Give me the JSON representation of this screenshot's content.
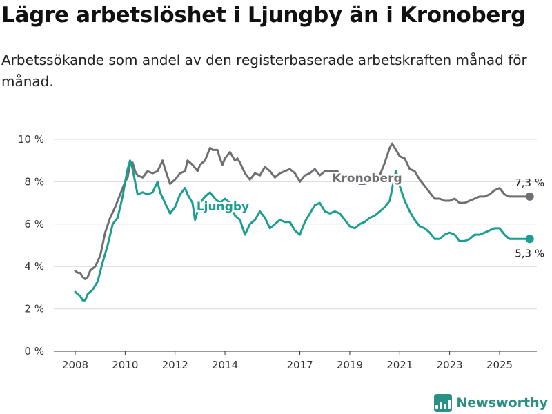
{
  "title": "Lägre arbetslöshet i Ljungby än i Kronoberg",
  "subtitle": "Arbetssökande som andel av den registerbaserade arbetskraften månad för månad.",
  "brand": "Newsworthy",
  "colors": {
    "ljungby": "#1a9e8f",
    "kronoberg": "#6e6e73",
    "grid": "#d9d9d9",
    "brand": "#2a8f84"
  },
  "chart_data": {
    "type": "line",
    "x_unit": "year",
    "ylim": [
      0,
      10
    ],
    "y_ticks": [
      {
        "value": 0,
        "label": "0 %"
      },
      {
        "value": 2,
        "label": "2 %"
      },
      {
        "value": 4,
        "label": "4 %"
      },
      {
        "value": 6,
        "label": "6 %"
      },
      {
        "value": 8,
        "label": "8 %"
      },
      {
        "value": 10,
        "label": "10 %"
      }
    ],
    "x_ticks": [
      {
        "value": 2008,
        "label": "2008"
      },
      {
        "value": 2010,
        "label": "2010"
      },
      {
        "value": 2012,
        "label": "2012"
      },
      {
        "value": 2014,
        "label": "2014"
      },
      {
        "value": 2017,
        "label": "2017"
      },
      {
        "value": 2019,
        "label": "2019"
      },
      {
        "value": 2021,
        "label": "2021"
      },
      {
        "value": 2023,
        "label": "2023"
      },
      {
        "value": 2025,
        "label": "2025"
      }
    ],
    "grid": true,
    "series": [
      {
        "name": "Kronoberg",
        "end_label": "7,3 %",
        "points": [
          [
            2008.0,
            3.8
          ],
          [
            2008.1,
            3.7
          ],
          [
            2008.2,
            3.7
          ],
          [
            2008.3,
            3.5
          ],
          [
            2008.4,
            3.4
          ],
          [
            2008.5,
            3.5
          ],
          [
            2008.6,
            3.8
          ],
          [
            2008.8,
            4.0
          ],
          [
            2009.0,
            4.5
          ],
          [
            2009.2,
            5.6
          ],
          [
            2009.4,
            6.3
          ],
          [
            2009.6,
            6.8
          ],
          [
            2009.8,
            7.4
          ],
          [
            2010.0,
            8.0
          ],
          [
            2010.1,
            8.2
          ],
          [
            2010.2,
            8.9
          ],
          [
            2010.3,
            8.9
          ],
          [
            2010.4,
            8.5
          ],
          [
            2010.5,
            8.3
          ],
          [
            2010.7,
            8.2
          ],
          [
            2010.9,
            8.5
          ],
          [
            2011.1,
            8.4
          ],
          [
            2011.3,
            8.5
          ],
          [
            2011.5,
            9.0
          ],
          [
            2011.6,
            8.6
          ],
          [
            2011.8,
            7.9
          ],
          [
            2012.0,
            8.1
          ],
          [
            2012.2,
            8.4
          ],
          [
            2012.4,
            8.5
          ],
          [
            2012.5,
            9.0
          ],
          [
            2012.7,
            8.8
          ],
          [
            2012.9,
            8.5
          ],
          [
            2013.0,
            8.8
          ],
          [
            2013.2,
            9.0
          ],
          [
            2013.4,
            9.6
          ],
          [
            2013.5,
            9.5
          ],
          [
            2013.7,
            9.5
          ],
          [
            2013.8,
            9.1
          ],
          [
            2013.9,
            8.8
          ],
          [
            2014.0,
            9.1
          ],
          [
            2014.2,
            9.4
          ],
          [
            2014.4,
            9.0
          ],
          [
            2014.5,
            9.1
          ],
          [
            2014.6,
            8.9
          ],
          [
            2014.8,
            8.4
          ],
          [
            2015.0,
            8.1
          ],
          [
            2015.2,
            8.4
          ],
          [
            2015.4,
            8.3
          ],
          [
            2015.6,
            8.7
          ],
          [
            2015.8,
            8.5
          ],
          [
            2016.0,
            8.2
          ],
          [
            2016.2,
            8.4
          ],
          [
            2016.4,
            8.5
          ],
          [
            2016.6,
            8.6
          ],
          [
            2016.8,
            8.4
          ],
          [
            2017.0,
            8.0
          ],
          [
            2017.2,
            8.3
          ],
          [
            2017.4,
            8.4
          ],
          [
            2017.6,
            8.6
          ],
          [
            2017.8,
            8.3
          ],
          [
            2018.0,
            8.5
          ],
          [
            2018.2,
            8.5
          ],
          [
            2018.5,
            8.5
          ],
          [
            2018.8,
            8.1
          ],
          [
            2019.0,
            8.0
          ],
          [
            2019.2,
            8.0
          ],
          [
            2019.4,
            7.9
          ],
          [
            2019.6,
            7.9
          ],
          [
            2019.8,
            8.0
          ],
          [
            2020.0,
            8.0
          ],
          [
            2020.2,
            8.3
          ],
          [
            2020.4,
            8.9
          ],
          [
            2020.6,
            9.6
          ],
          [
            2020.7,
            9.8
          ],
          [
            2020.85,
            9.5
          ],
          [
            2021.0,
            9.2
          ],
          [
            2021.2,
            9.1
          ],
          [
            2021.4,
            8.6
          ],
          [
            2021.6,
            8.5
          ],
          [
            2021.8,
            8.1
          ],
          [
            2022.0,
            7.8
          ],
          [
            2022.2,
            7.5
          ],
          [
            2022.4,
            7.2
          ],
          [
            2022.6,
            7.2
          ],
          [
            2022.8,
            7.1
          ],
          [
            2023.0,
            7.1
          ],
          [
            2023.2,
            7.2
          ],
          [
            2023.4,
            7.0
          ],
          [
            2023.6,
            7.0
          ],
          [
            2023.8,
            7.1
          ],
          [
            2024.0,
            7.2
          ],
          [
            2024.2,
            7.3
          ],
          [
            2024.4,
            7.3
          ],
          [
            2024.6,
            7.4
          ],
          [
            2024.8,
            7.6
          ],
          [
            2025.0,
            7.7
          ],
          [
            2025.2,
            7.4
          ],
          [
            2025.4,
            7.3
          ],
          [
            2025.6,
            7.3
          ]
        ]
      },
      {
        "name": "Ljungby",
        "end_label": "5,3 %",
        "points": [
          [
            2008.0,
            2.8
          ],
          [
            2008.1,
            2.7
          ],
          [
            2008.2,
            2.6
          ],
          [
            2008.3,
            2.4
          ],
          [
            2008.4,
            2.4
          ],
          [
            2008.5,
            2.7
          ],
          [
            2008.7,
            2.9
          ],
          [
            2008.9,
            3.3
          ],
          [
            2009.1,
            4.2
          ],
          [
            2009.3,
            5.0
          ],
          [
            2009.5,
            6.0
          ],
          [
            2009.7,
            6.3
          ],
          [
            2009.9,
            7.3
          ],
          [
            2010.0,
            8.0
          ],
          [
            2010.1,
            8.6
          ],
          [
            2010.2,
            9.0
          ],
          [
            2010.3,
            8.6
          ],
          [
            2010.4,
            8.0
          ],
          [
            2010.5,
            7.4
          ],
          [
            2010.7,
            7.5
          ],
          [
            2010.9,
            7.4
          ],
          [
            2011.1,
            7.5
          ],
          [
            2011.3,
            8.0
          ],
          [
            2011.4,
            7.5
          ],
          [
            2011.6,
            7.0
          ],
          [
            2011.8,
            6.5
          ],
          [
            2012.0,
            6.8
          ],
          [
            2012.2,
            7.4
          ],
          [
            2012.4,
            7.7
          ],
          [
            2012.5,
            7.4
          ],
          [
            2012.7,
            7.0
          ],
          [
            2012.8,
            6.2
          ],
          [
            2012.9,
            6.6
          ],
          [
            2013.0,
            7.0
          ],
          [
            2013.2,
            7.3
          ],
          [
            2013.4,
            7.5
          ],
          [
            2013.6,
            7.2
          ],
          [
            2013.8,
            7.0
          ],
          [
            2014.0,
            7.2
          ],
          [
            2014.2,
            7.0
          ],
          [
            2014.4,
            6.4
          ],
          [
            2014.6,
            6.2
          ],
          [
            2014.8,
            5.5
          ],
          [
            2015.0,
            6.0
          ],
          [
            2015.2,
            6.2
          ],
          [
            2015.4,
            6.6
          ],
          [
            2015.6,
            6.3
          ],
          [
            2015.8,
            5.8
          ],
          [
            2016.0,
            6.0
          ],
          [
            2016.2,
            6.2
          ],
          [
            2016.4,
            6.1
          ],
          [
            2016.6,
            6.1
          ],
          [
            2016.8,
            5.7
          ],
          [
            2017.0,
            5.5
          ],
          [
            2017.2,
            6.1
          ],
          [
            2017.4,
            6.5
          ],
          [
            2017.6,
            6.9
          ],
          [
            2017.8,
            7.0
          ],
          [
            2018.0,
            6.6
          ],
          [
            2018.2,
            6.5
          ],
          [
            2018.4,
            6.6
          ],
          [
            2018.6,
            6.5
          ],
          [
            2018.8,
            6.2
          ],
          [
            2019.0,
            5.9
          ],
          [
            2019.2,
            5.8
          ],
          [
            2019.4,
            6.0
          ],
          [
            2019.6,
            6.1
          ],
          [
            2019.8,
            6.3
          ],
          [
            2020.0,
            6.4
          ],
          [
            2020.2,
            6.6
          ],
          [
            2020.4,
            6.8
          ],
          [
            2020.6,
            7.1
          ],
          [
            2020.75,
            8.0
          ],
          [
            2020.85,
            8.5
          ],
          [
            2021.0,
            7.8
          ],
          [
            2021.2,
            7.1
          ],
          [
            2021.4,
            6.6
          ],
          [
            2021.6,
            6.2
          ],
          [
            2021.8,
            5.9
          ],
          [
            2022.0,
            5.8
          ],
          [
            2022.2,
            5.6
          ],
          [
            2022.4,
            5.3
          ],
          [
            2022.6,
            5.3
          ],
          [
            2022.8,
            5.5
          ],
          [
            2023.0,
            5.6
          ],
          [
            2023.2,
            5.5
          ],
          [
            2023.4,
            5.2
          ],
          [
            2023.6,
            5.2
          ],
          [
            2023.8,
            5.3
          ],
          [
            2024.0,
            5.5
          ],
          [
            2024.2,
            5.5
          ],
          [
            2024.4,
            5.6
          ],
          [
            2024.6,
            5.7
          ],
          [
            2024.8,
            5.8
          ],
          [
            2025.0,
            5.8
          ],
          [
            2025.2,
            5.5
          ],
          [
            2025.4,
            5.3
          ],
          [
            2025.6,
            5.3
          ]
        ]
      }
    ]
  }
}
